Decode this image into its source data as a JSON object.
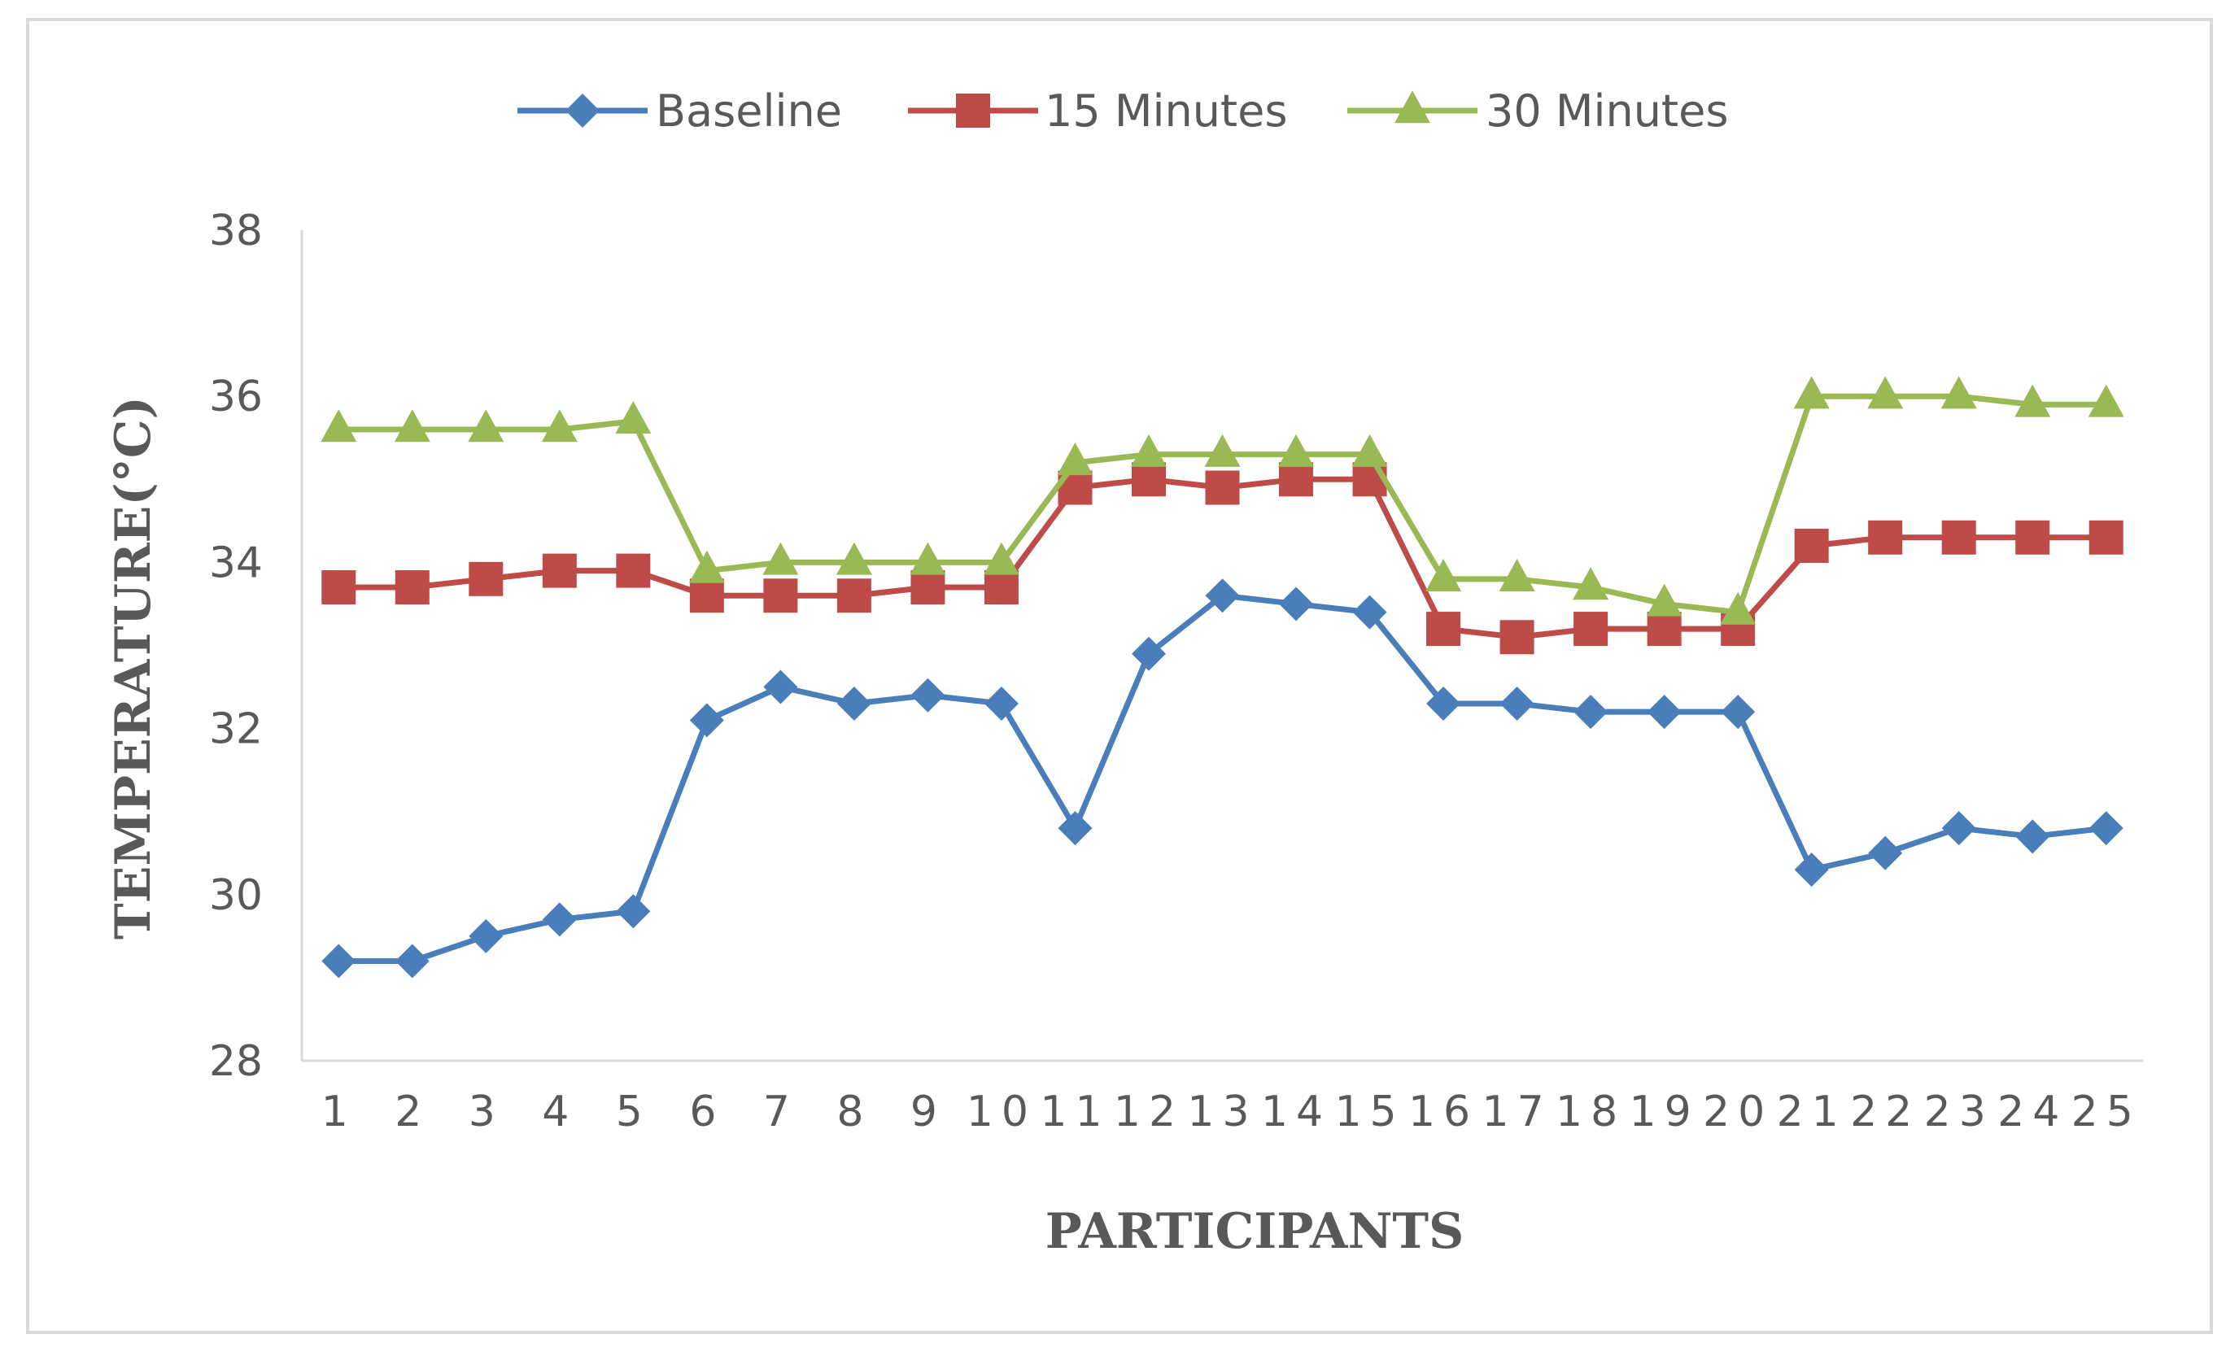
{
  "chart_data": {
    "type": "line",
    "title": "",
    "xlabel": "PARTICIPANTS",
    "ylabel": "TEMPERATURE(°C)",
    "categories": [
      "1",
      "2",
      "3",
      "4",
      "5",
      "6",
      "7",
      "8",
      "9",
      "10",
      "11",
      "12",
      "13",
      "14",
      "15",
      "16",
      "17",
      "18",
      "19",
      "20",
      "21",
      "22",
      "23",
      "24",
      "25"
    ],
    "yticks": [
      "28",
      "30",
      "32",
      "34",
      "36",
      "38"
    ],
    "ylim": [
      28,
      38
    ],
    "grid": false,
    "legend_position": "top",
    "series": [
      {
        "name": "Baseline",
        "color": "#4a7ebb",
        "marker": "diamond",
        "values": [
          29.2,
          29.2,
          29.5,
          29.7,
          29.8,
          32.1,
          32.5,
          32.3,
          32.4,
          32.3,
          30.8,
          32.9,
          33.6,
          33.5,
          33.4,
          32.3,
          32.3,
          32.2,
          32.2,
          32.2,
          30.3,
          30.5,
          30.8,
          30.7,
          30.8
        ]
      },
      {
        "name": "15 Minutes",
        "color": "#be4b48",
        "marker": "square",
        "values": [
          33.7,
          33.7,
          33.8,
          33.9,
          33.9,
          33.6,
          33.6,
          33.6,
          33.7,
          33.7,
          34.9,
          35.0,
          34.9,
          35.0,
          35.0,
          33.2,
          33.1,
          33.2,
          33.2,
          33.2,
          34.2,
          34.3,
          34.3,
          34.3,
          34.3
        ]
      },
      {
        "name": "30 Minutes",
        "color": "#98b954",
        "marker": "triangle",
        "values": [
          35.6,
          35.6,
          35.6,
          35.6,
          35.7,
          33.9,
          34.0,
          34.0,
          34.0,
          34.0,
          35.2,
          35.3,
          35.3,
          35.3,
          35.3,
          33.8,
          33.8,
          33.7,
          33.5,
          33.4,
          36.0,
          36.0,
          36.0,
          35.9,
          35.9
        ]
      }
    ]
  }
}
